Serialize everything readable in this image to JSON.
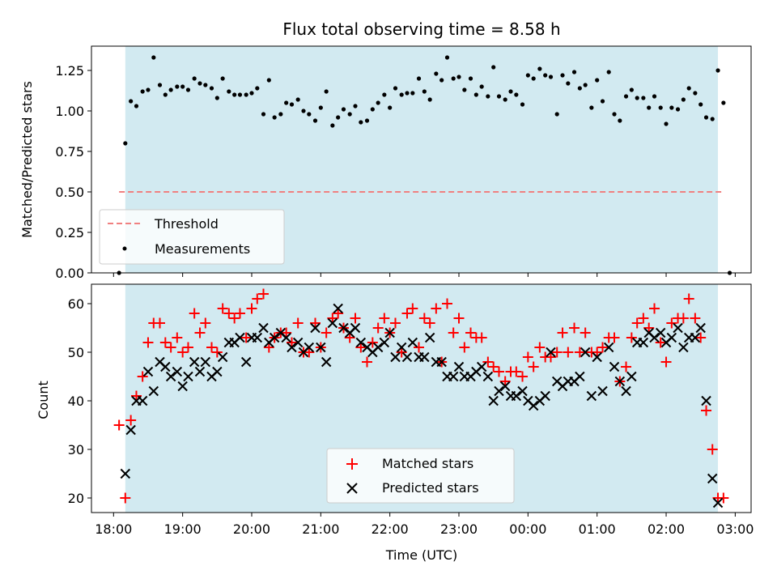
{
  "chart_data": [
    {
      "type": "scatter",
      "title": "Flux total observing time = 8.58 h",
      "xlabel": "",
      "ylabel": "Matched/Predicted stars",
      "xlim_hours": [
        17.68,
        27.23
      ],
      "ylim": [
        0,
        1.4
      ],
      "yticks": [
        0.0,
        0.25,
        0.5,
        0.75,
        1.0,
        1.25
      ],
      "ytick_labels": [
        "0.00",
        "0.25",
        "0.50",
        "0.75",
        "1.00",
        "1.25"
      ],
      "shaded_span_hours": [
        18.17,
        26.75
      ],
      "shade_color": "#add8e6",
      "threshold": {
        "name": "Threshold",
        "value": 0.5,
        "x_hours": [
          18.08,
          26.83
        ],
        "color": "#f08080",
        "style": "dashed"
      },
      "series": [
        {
          "name": "Measurements",
          "color": "#000000",
          "marker": "dot",
          "x_hours": [
            18.08,
            18.17,
            18.25,
            18.33,
            18.42,
            18.5,
            18.58,
            18.67,
            18.75,
            18.83,
            18.92,
            19.0,
            19.08,
            19.17,
            19.25,
            19.33,
            19.42,
            19.5,
            19.58,
            19.67,
            19.75,
            19.83,
            19.92,
            20.0,
            20.08,
            20.17,
            20.25,
            20.33,
            20.42,
            20.5,
            20.58,
            20.67,
            20.75,
            20.83,
            20.92,
            21.0,
            21.08,
            21.17,
            21.25,
            21.33,
            21.42,
            21.5,
            21.58,
            21.67,
            21.75,
            21.83,
            21.92,
            22.0,
            22.08,
            22.17,
            22.25,
            22.33,
            22.42,
            22.5,
            22.58,
            22.67,
            22.75,
            22.83,
            22.92,
            23.0,
            23.08,
            23.17,
            23.25,
            23.33,
            23.42,
            23.5,
            23.58,
            23.67,
            23.75,
            23.83,
            23.92,
            24.0,
            24.08,
            24.17,
            24.25,
            24.33,
            24.42,
            24.5,
            24.58,
            24.67,
            24.75,
            24.83,
            24.92,
            25.0,
            25.08,
            25.17,
            25.25,
            25.33,
            25.42,
            25.5,
            25.58,
            25.67,
            25.75,
            25.83,
            25.92,
            26.0,
            26.08,
            26.17,
            26.25,
            26.33,
            26.42,
            26.5,
            26.58,
            26.67,
            26.75,
            26.83
          ],
          "values": [
            0.0,
            0.8,
            1.06,
            1.03,
            1.12,
            1.13,
            1.33,
            1.16,
            1.1,
            1.13,
            1.15,
            1.15,
            1.13,
            1.2,
            1.17,
            1.16,
            1.14,
            1.08,
            1.2,
            1.12,
            1.1,
            1.1,
            1.1,
            1.11,
            1.14,
            0.98,
            1.19,
            0.96,
            0.98,
            1.05,
            1.04,
            1.07,
            1.0,
            0.98,
            0.94,
            1.02,
            1.12,
            0.91,
            0.96,
            1.01,
            0.98,
            1.03,
            0.93,
            0.94,
            1.01,
            1.05,
            1.1,
            1.02,
            1.14,
            1.1,
            1.11,
            1.11,
            1.2,
            1.12,
            1.07,
            1.23,
            1.19,
            1.33,
            1.2,
            1.21,
            1.13,
            1.2,
            1.1,
            1.15,
            1.09,
            1.27,
            1.09,
            1.07,
            1.12,
            1.1,
            1.04,
            1.22,
            1.2,
            1.26,
            1.22,
            1.21,
            0.98,
            1.22,
            1.17,
            1.24,
            1.14,
            1.16,
            1.02,
            1.19,
            1.06,
            1.24,
            0.98,
            0.94,
            1.09,
            1.13,
            1.08,
            1.08,
            1.02,
            1.09,
            1.02,
            0.92,
            1.02,
            1.01,
            1.07,
            1.14,
            1.11,
            1.04,
            0.96,
            0.95,
            1.25,
            1.05
          ]
        }
      ],
      "extra_points": [
        {
          "x_hours": 26.92,
          "value": 0.0
        }
      ],
      "legend": {
        "position": "lower-left",
        "entries": [
          "Threshold",
          "Measurements"
        ]
      }
    },
    {
      "type": "scatter",
      "title": "",
      "xlabel": "Time (UTC)",
      "ylabel": "Count",
      "xlim_hours": [
        17.68,
        27.23
      ],
      "ylim": [
        17,
        64
      ],
      "yticks": [
        20,
        30,
        40,
        50,
        60
      ],
      "ytick_labels": [
        "20",
        "30",
        "40",
        "50",
        "60"
      ],
      "xticks_hours": [
        18,
        19,
        20,
        21,
        22,
        23,
        24,
        25,
        26,
        27
      ],
      "xtick_labels": [
        "18:00",
        "19:00",
        "20:00",
        "21:00",
        "22:00",
        "23:00",
        "00:00",
        "01:00",
        "02:00",
        "03:00"
      ],
      "shaded_span_hours": [
        18.17,
        26.75
      ],
      "shade_color": "#add8e6",
      "series": [
        {
          "name": "Matched stars",
          "color": "#ff0000",
          "marker": "plus",
          "x_hours": [
            18.08,
            18.17,
            18.25,
            18.33,
            18.42,
            18.5,
            18.58,
            18.67,
            18.75,
            18.83,
            18.92,
            19.0,
            19.08,
            19.17,
            19.25,
            19.33,
            19.42,
            19.5,
            19.58,
            19.67,
            19.75,
            19.83,
            19.92,
            20.0,
            20.08,
            20.17,
            20.25,
            20.33,
            20.42,
            20.5,
            20.58,
            20.67,
            20.75,
            20.83,
            20.92,
            21.0,
            21.08,
            21.17,
            21.25,
            21.33,
            21.42,
            21.5,
            21.58,
            21.67,
            21.75,
            21.83,
            21.92,
            22.0,
            22.08,
            22.17,
            22.25,
            22.33,
            22.42,
            22.5,
            22.58,
            22.67,
            22.75,
            22.83,
            22.92,
            23.0,
            23.08,
            23.17,
            23.25,
            23.33,
            23.42,
            23.5,
            23.58,
            23.67,
            23.75,
            23.83,
            23.92,
            24.0,
            24.08,
            24.17,
            24.25,
            24.33,
            24.42,
            24.5,
            24.58,
            24.67,
            24.75,
            24.83,
            24.92,
            25.0,
            25.08,
            25.17,
            25.25,
            25.33,
            25.42,
            25.5,
            25.58,
            25.67,
            25.75,
            25.83,
            25.92,
            26.0,
            26.08,
            26.17,
            26.25,
            26.33,
            26.42,
            26.5,
            26.58,
            26.67,
            26.75,
            26.83
          ],
          "values": [
            35,
            20,
            36,
            41,
            45,
            52,
            56,
            56,
            52,
            51,
            53,
            50,
            51,
            58,
            54,
            56,
            51,
            50,
            59,
            58,
            57,
            58,
            53,
            59,
            61,
            62,
            51,
            53,
            54,
            54,
            52,
            56,
            50,
            50,
            56,
            51,
            54,
            57,
            58,
            55,
            53,
            57,
            51,
            48,
            52,
            55,
            57,
            54,
            56,
            50,
            58,
            59,
            51,
            57,
            56,
            59,
            48,
            60,
            54,
            57,
            51,
            54,
            53,
            53,
            48,
            47,
            46,
            44,
            46,
            46,
            45,
            49,
            47,
            51,
            49,
            49,
            50,
            54,
            50,
            55,
            50,
            54,
            50,
            50,
            51,
            53,
            53,
            44,
            47,
            53,
            56,
            57,
            55,
            59,
            52,
            48,
            56,
            57,
            57,
            61,
            57,
            53,
            38,
            30,
            20,
            20
          ]
        },
        {
          "name": "Predicted stars",
          "color": "#000000",
          "marker": "x",
          "x_hours": [
            18.17,
            18.25,
            18.33,
            18.42,
            18.5,
            18.58,
            18.67,
            18.75,
            18.83,
            18.92,
            19.0,
            19.08,
            19.17,
            19.25,
            19.33,
            19.42,
            19.5,
            19.58,
            19.67,
            19.75,
            19.83,
            19.92,
            20.0,
            20.08,
            20.17,
            20.25,
            20.33,
            20.42,
            20.5,
            20.58,
            20.67,
            20.75,
            20.83,
            20.92,
            21.0,
            21.08,
            21.17,
            21.25,
            21.33,
            21.42,
            21.5,
            21.58,
            21.67,
            21.75,
            21.83,
            21.92,
            22.0,
            22.08,
            22.17,
            22.25,
            22.33,
            22.42,
            22.5,
            22.58,
            22.67,
            22.75,
            22.83,
            22.92,
            23.0,
            23.08,
            23.17,
            23.25,
            23.33,
            23.42,
            23.5,
            23.58,
            23.67,
            23.75,
            23.83,
            23.92,
            24.0,
            24.08,
            24.17,
            24.25,
            24.33,
            24.42,
            24.5,
            24.58,
            24.67,
            24.75,
            24.83,
            24.92,
            25.0,
            25.08,
            25.17,
            25.25,
            25.33,
            25.42,
            25.5,
            25.58,
            25.67,
            25.75,
            25.83,
            25.92,
            26.0,
            26.08,
            26.17,
            26.25,
            26.33,
            26.42,
            26.5,
            26.58,
            26.67,
            26.75
          ],
          "values": [
            25,
            34,
            40,
            40,
            46,
            42,
            48,
            47,
            45,
            46,
            43,
            45,
            48,
            46,
            48,
            45,
            46,
            49,
            52,
            52,
            53,
            48,
            53,
            53,
            55,
            52,
            53,
            54,
            53,
            51,
            52,
            50,
            51,
            55,
            51,
            48,
            56,
            59,
            55,
            54,
            55,
            52,
            51,
            50,
            51,
            52,
            54,
            49,
            51,
            49,
            52,
            49,
            49,
            53,
            48,
            48,
            45,
            45,
            47,
            45,
            45,
            46,
            47,
            45,
            40,
            42,
            43,
            41,
            41,
            42,
            40,
            39,
            40,
            41,
            50,
            44,
            43,
            44,
            44,
            45,
            50,
            41,
            49,
            42,
            51,
            47,
            44,
            42,
            45,
            52,
            52,
            54,
            53,
            54,
            52,
            53,
            55,
            51,
            53,
            53,
            55,
            40,
            24,
            19
          ]
        }
      ],
      "legend": {
        "position": "lower-center",
        "entries": [
          "Matched stars",
          "Predicted stars"
        ]
      }
    }
  ]
}
